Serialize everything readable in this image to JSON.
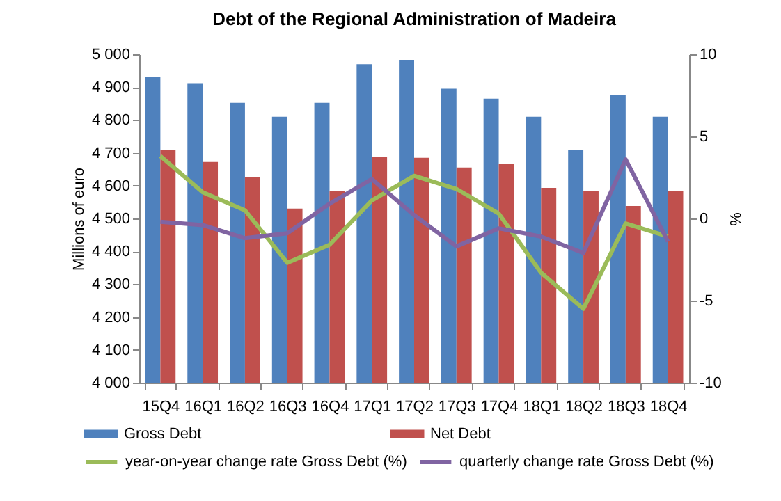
{
  "chart_data": {
    "type": "bar",
    "title": "Debt of the Regional Administration  of Madeira",
    "ylabel": "Millions of euro",
    "y2label": "%",
    "categories": [
      "15Q4",
      "16Q1",
      "16Q2",
      "16Q3",
      "16Q4",
      "17Q1",
      "17Q2",
      "17Q3",
      "17Q4",
      "18Q1",
      "18Q2",
      "18Q3",
      "18Q4"
    ],
    "series": [
      {
        "name": "Gross Debt",
        "color": "#4f81bd",
        "values": [
          4932,
          4912,
          4852,
          4810,
          4852,
          4970,
          4983,
          4895,
          4865,
          4810,
          4708,
          4877,
          4810
        ]
      },
      {
        "name": "Net Debt",
        "color": "#c0504d",
        "values": [
          4710,
          4672,
          4626,
          4530,
          4585,
          4688,
          4685,
          4655,
          4667,
          4593,
          4585,
          4538,
          4585
        ]
      },
      {
        "name": "year-on-year change rate Gross Debt (%)",
        "type": "line",
        "axis": "y2",
        "color": "#9bbb59",
        "values": [
          3.8,
          1.6,
          0.5,
          -2.7,
          -1.6,
          1.1,
          2.6,
          1.8,
          0.3,
          -3.3,
          -5.5,
          -0.3,
          -1.1
        ]
      },
      {
        "name": "quarterly change rate Gross Debt (%)",
        "type": "line",
        "axis": "y2",
        "color": "#8064a2",
        "values": [
          -0.2,
          -0.4,
          -1.2,
          -0.9,
          0.9,
          2.4,
          0.2,
          -1.7,
          -0.6,
          -1.1,
          -2.1,
          3.6,
          -1.4
        ]
      }
    ],
    "ylim": [
      4000,
      5000
    ],
    "yticks": [
      {
        "value": 4000,
        "label": "4 000"
      },
      {
        "value": 4100,
        "label": "4 100"
      },
      {
        "value": 4200,
        "label": "4 200"
      },
      {
        "value": 4300,
        "label": "4 300"
      },
      {
        "value": 4400,
        "label": "4 400"
      },
      {
        "value": 4500,
        "label": "4 500"
      },
      {
        "value": 4600,
        "label": "4 600"
      },
      {
        "value": 4700,
        "label": "4 700"
      },
      {
        "value": 4800,
        "label": "4 800"
      },
      {
        "value": 4900,
        "label": "4 900"
      },
      {
        "value": 5000,
        "label": "5 000"
      }
    ],
    "y2lim": [
      -10,
      10
    ],
    "y2ticks": [
      -10,
      -5,
      0,
      5,
      10
    ],
    "grid": false,
    "legend": "bottom"
  }
}
